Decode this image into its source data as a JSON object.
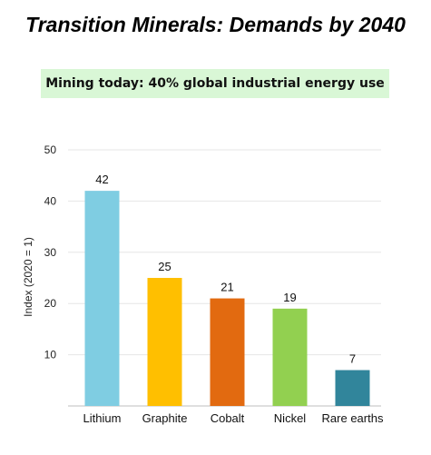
{
  "title": "Transition Minerals: Demands by 2040",
  "banner": "Mining today: 40% global industrial energy use",
  "chart_data": {
    "type": "bar",
    "categories": [
      "Lithium",
      "Graphite",
      "Cobalt",
      "Nickel",
      "Rare earths"
    ],
    "values": [
      42,
      25,
      21,
      19,
      7
    ],
    "data_labels": [
      "42",
      "25",
      "21",
      "19",
      "7"
    ],
    "colors": [
      "#7fcde2",
      "#ffbf00",
      "#e26a10",
      "#92d050",
      "#31859b"
    ],
    "ylabel": "Index (2020 = 1)",
    "xlabel": "",
    "ylim": [
      0,
      50
    ],
    "yticks": [
      10,
      20,
      30,
      40,
      50
    ],
    "grid": true
  }
}
